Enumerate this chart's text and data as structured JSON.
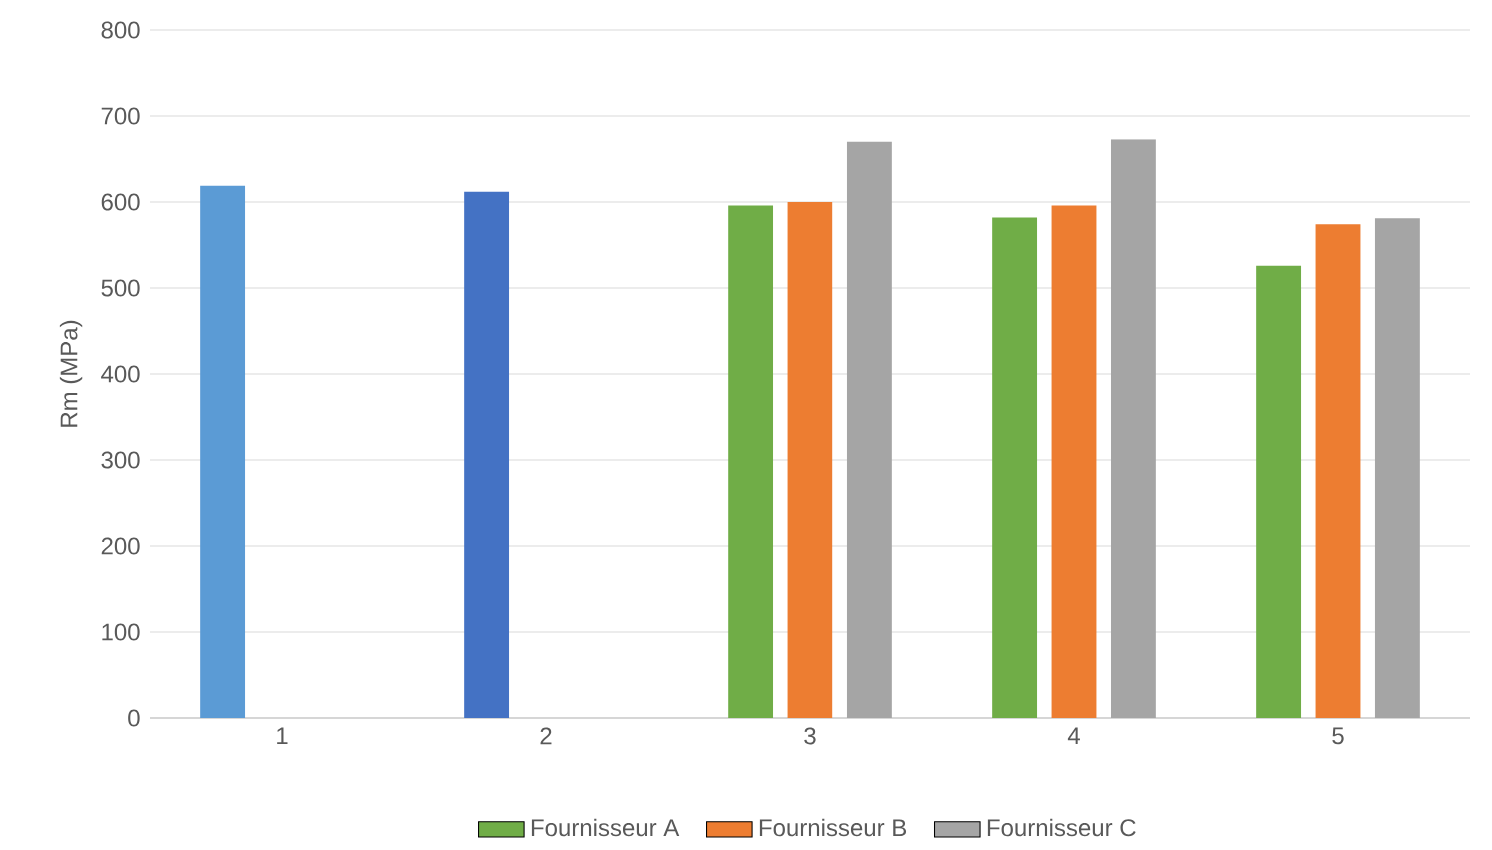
{
  "chart_data": {
    "type": "bar",
    "ylabel": "Rm (MPa)",
    "categories": [
      "1",
      "2",
      "3",
      "4",
      "5"
    ],
    "series": [
      {
        "name": "Fournisseur A",
        "color": "#70ad47",
        "colors": [
          "#5b9bd5",
          "#4472c4",
          "#70ad47",
          "#70ad47",
          "#70ad47"
        ],
        "values": [
          619,
          612,
          596,
          582,
          526
        ]
      },
      {
        "name": "Fournisseur B",
        "color": "#ed7d31",
        "values": [
          null,
          null,
          600,
          596,
          574
        ]
      },
      {
        "name": "Fournisseur C",
        "color": "#a5a5a5",
        "values": [
          null,
          null,
          670,
          673,
          581
        ]
      }
    ],
    "ylim": [
      0,
      800
    ],
    "yticks": [
      0,
      100,
      200,
      300,
      400,
      500,
      600,
      700,
      800
    ],
    "grid": "y",
    "legend": "bottom"
  }
}
